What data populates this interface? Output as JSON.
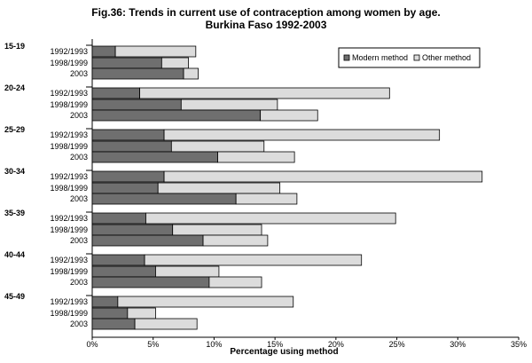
{
  "chart_data": {
    "type": "bar",
    "orientation": "horizontal",
    "stacked": true,
    "title": "Fig.36:  Trends in current use of contraception among women by age.",
    "subtitle": "Burkina Faso 1992-2003",
    "xlabel": "Percentage using method",
    "xlim": [
      0,
      35
    ],
    "xticks": [
      "0%",
      "5%",
      "10%",
      "15%",
      "20%",
      "25%",
      "30%",
      "35%"
    ],
    "grid": false,
    "legend_position": "top-right",
    "colors": {
      "modern": "#6f6f6f",
      "other": "#dcdcdc",
      "stroke": "#000000"
    },
    "series_names": [
      "Modern method",
      "Other method"
    ],
    "groups": [
      {
        "label": "15-19",
        "bars": [
          {
            "label": "1992/1993",
            "modern": 1.9,
            "other": 6.6
          },
          {
            "label": "1998/1999",
            "modern": 5.7,
            "other": 2.2
          },
          {
            "label": "2003",
            "modern": 7.5,
            "other": 1.2
          }
        ]
      },
      {
        "label": "20-24",
        "bars": [
          {
            "label": "1992/1993",
            "modern": 3.9,
            "other": 20.5
          },
          {
            "label": "1998/1999",
            "modern": 7.3,
            "other": 7.9
          },
          {
            "label": "2003",
            "modern": 13.8,
            "other": 4.7
          }
        ]
      },
      {
        "label": "25-29",
        "bars": [
          {
            "label": "1992/1993",
            "modern": 5.9,
            "other": 22.6
          },
          {
            "label": "1998/1999",
            "modern": 6.5,
            "other": 7.6
          },
          {
            "label": "2003",
            "modern": 10.3,
            "other": 6.3
          }
        ]
      },
      {
        "label": "30-34",
        "bars": [
          {
            "label": "1992/1993",
            "modern": 5.9,
            "other": 26.1
          },
          {
            "label": "1998/1999",
            "modern": 5.4,
            "other": 10.0
          },
          {
            "label": "2003",
            "modern": 11.8,
            "other": 5.0
          }
        ]
      },
      {
        "label": "35-39",
        "bars": [
          {
            "label": "1992/1993",
            "modern": 4.4,
            "other": 20.5
          },
          {
            "label": "1998/1999",
            "modern": 6.6,
            "other": 7.3
          },
          {
            "label": "2003",
            "modern": 9.1,
            "other": 5.3
          }
        ]
      },
      {
        "label": "40-44",
        "bars": [
          {
            "label": "1992/1993",
            "modern": 4.3,
            "other": 17.8
          },
          {
            "label": "1998/1999",
            "modern": 5.2,
            "other": 5.2
          },
          {
            "label": "2003",
            "modern": 9.6,
            "other": 4.3
          }
        ]
      },
      {
        "label": "45-49",
        "bars": [
          {
            "label": "1992/1993",
            "modern": 2.1,
            "other": 14.4
          },
          {
            "label": "1998/1999",
            "modern": 2.9,
            "other": 2.3
          },
          {
            "label": "2003",
            "modern": 3.5,
            "other": 5.1
          }
        ]
      }
    ]
  }
}
